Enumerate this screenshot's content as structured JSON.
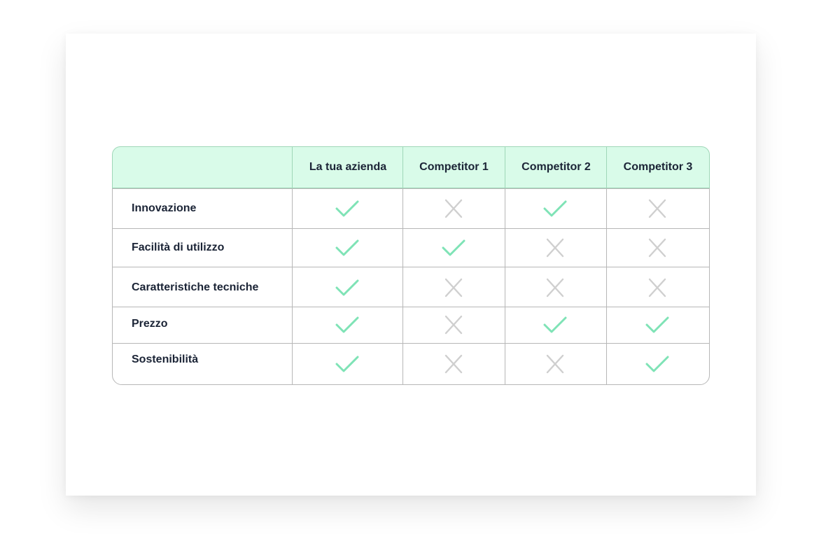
{
  "columns": [
    "La tua azienda",
    "Competitor 1",
    "Competitor 2",
    "Competitor 3"
  ],
  "rows": [
    {
      "label": "Innovazione",
      "values": [
        true,
        false,
        true,
        false
      ]
    },
    {
      "label": "Facilità di utilizzo",
      "values": [
        true,
        true,
        false,
        false
      ]
    },
    {
      "label": "Caratteristiche tecniche",
      "values": [
        true,
        false,
        false,
        false
      ]
    },
    {
      "label": "Prezzo",
      "values": [
        true,
        false,
        true,
        true
      ]
    },
    {
      "label": "Sostenibilità",
      "values": [
        true,
        false,
        false,
        true
      ]
    }
  ],
  "icons": {
    "yes": "check-icon",
    "no": "cross-icon"
  },
  "colors": {
    "header_bg": "#d9fbe9",
    "check": "#7fe3b6",
    "cross": "#cfcfcf",
    "text": "#1b2436"
  }
}
